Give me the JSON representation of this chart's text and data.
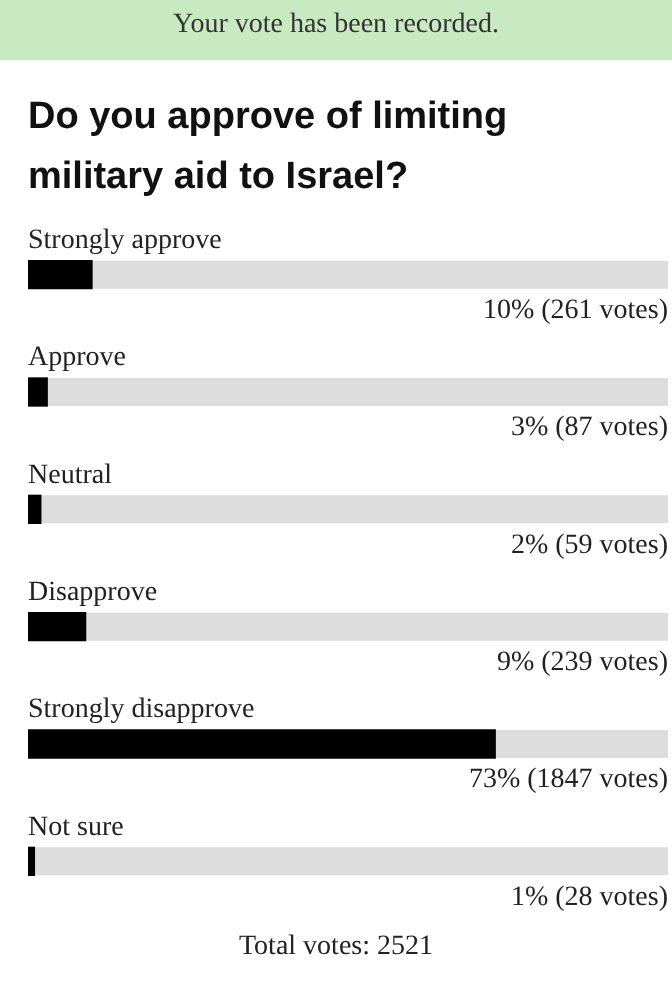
{
  "chart_data": {
    "type": "bar",
    "orientation": "horizontal",
    "title": "Do you approve of limiting military aid to Israel?",
    "categories": [
      "Strongly approve",
      "Approve",
      "Neutral",
      "Disapprove",
      "Strongly disapprove",
      "Not sure"
    ],
    "values": [
      10,
      3,
      2,
      9,
      73,
      1
    ],
    "value_labels": [
      "10% (261 votes)",
      "3% (87 votes)",
      "2% (59 votes)",
      "9% (239 votes)",
      "73% (1847 votes)",
      "1% (28 votes)"
    ],
    "color": "#000000",
    "xlim": [
      0,
      100
    ],
    "tick_labels": false,
    "legend": false,
    "annotations": [
      "Your vote has been recorded.",
      "Total votes: 2521"
    ]
  }
}
